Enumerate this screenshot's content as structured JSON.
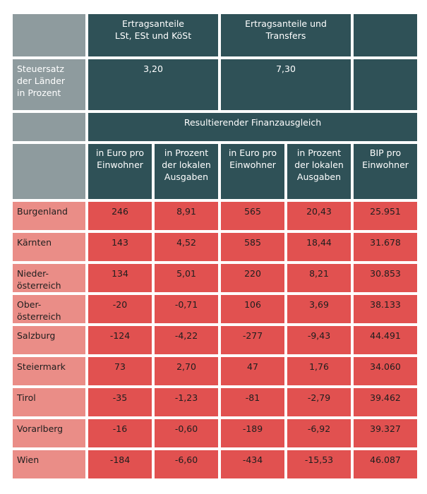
{
  "header": {
    "group1": "Ertragsanteile\nLSt, ESt und KöSt",
    "group2": "Ertragsanteile und\nTransfers",
    "steuersatz_label": "Steuersatz\nder Länder\nin Prozent",
    "steuersatz_1": "3,20",
    "steuersatz_2": "7,30",
    "resultierender": "Resultierender Finanzausgleich",
    "col_euro_1": "in Euro pro\nEinwohner",
    "col_prozent_1": "in Prozent\nder lokalen\nAusgaben",
    "col_euro_2": "in Euro pro\nEinwohner",
    "col_prozent_2": "in Prozent\nder lokalen\nAusgaben",
    "col_bip": "BIP pro\nEinwohner"
  },
  "rows": [
    {
      "name": "Burgenland",
      "v": [
        "246",
        "8,91",
        "565",
        "20,43",
        "25.951"
      ]
    },
    {
      "name": "Kärnten",
      "v": [
        "143",
        "4,52",
        "585",
        "18,44",
        "31.678"
      ]
    },
    {
      "name": "Nieder-\nösterreich",
      "v": [
        "134",
        "5,01",
        "220",
        "8,21",
        "30.853"
      ]
    },
    {
      "name": "Ober-\nösterreich",
      "v": [
        "-20",
        "-0,71",
        "106",
        "3,69",
        "38.133"
      ]
    },
    {
      "name": "Salzburg",
      "v": [
        "-124",
        "-4,22",
        "-277",
        "-9,43",
        "44.491"
      ]
    },
    {
      "name": "Steiermark",
      "v": [
        "73",
        "2,70",
        "47",
        "1,76",
        "34.060"
      ]
    },
    {
      "name": "Tirol",
      "v": [
        "-35",
        "-1,23",
        "-81",
        "-2,79",
        "39.462"
      ]
    },
    {
      "name": "Vorarlberg",
      "v": [
        "-16",
        "-0,60",
        "-189",
        "-6,92",
        "39.327"
      ]
    },
    {
      "name": "Wien",
      "v": [
        "-184",
        "-6,60",
        "-434",
        "-15,53",
        "46.087"
      ]
    }
  ]
}
